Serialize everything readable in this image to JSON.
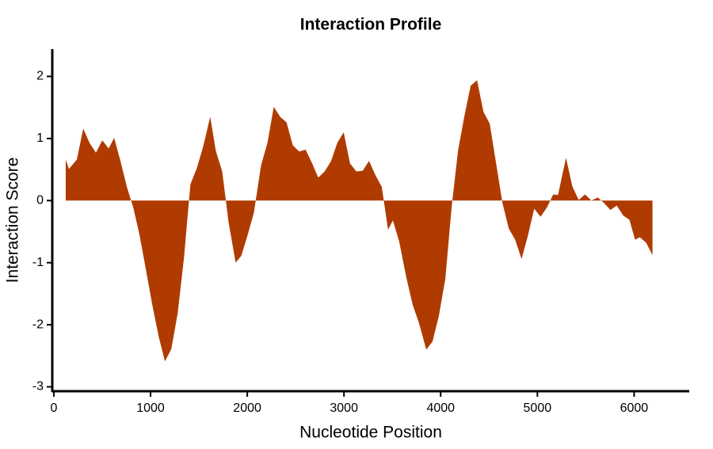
{
  "chart_data": {
    "type": "area",
    "title": "Interaction Profile",
    "x_label": "Nucleotide Position",
    "y_label": "Interaction Score",
    "color": "#b03b00",
    "x": [
      123,
      156,
      238,
      304,
      369,
      435,
      501,
      567,
      624,
      690,
      755,
      821,
      887,
      952,
      1018,
      1084,
      1149,
      1215,
      1281,
      1346,
      1412,
      1478,
      1544,
      1617,
      1675,
      1741,
      1806,
      1880,
      1938,
      2003,
      2069,
      2143,
      2209,
      2274,
      2340,
      2406,
      2471,
      2537,
      2603,
      2668,
      2734,
      2800,
      2865,
      2931,
      2997,
      3062,
      3128,
      3194,
      3259,
      3325,
      3391,
      3456,
      3506,
      3571,
      3645,
      3711,
      3777,
      3851,
      3916,
      3982,
      4048,
      4113,
      4179,
      4245,
      4310,
      4376,
      4442,
      4507,
      4573,
      4639,
      4704,
      4770,
      4836,
      4901,
      4967,
      5033,
      5099,
      5164,
      5213,
      5296,
      5361,
      5427,
      5493,
      5558,
      5624,
      5690,
      5755,
      5821,
      5887,
      5952,
      6010,
      6059,
      6125,
      6190
    ],
    "values": [
      0.66,
      0.51,
      0.66,
      1.16,
      0.93,
      0.77,
      0.97,
      0.84,
      1.01,
      0.63,
      0.22,
      -0.11,
      -0.56,
      -1.11,
      -1.68,
      -2.19,
      -2.59,
      -2.39,
      -1.81,
      -0.92,
      0.26,
      0.52,
      0.87,
      1.35,
      0.8,
      0.47,
      -0.34,
      -1.0,
      -0.89,
      -0.56,
      -0.19,
      0.57,
      0.93,
      1.51,
      1.35,
      1.26,
      0.89,
      0.79,
      0.82,
      0.61,
      0.37,
      0.47,
      0.63,
      0.93,
      1.1,
      0.6,
      0.47,
      0.48,
      0.64,
      0.41,
      0.22,
      -0.47,
      -0.32,
      -0.66,
      -1.24,
      -1.68,
      -1.98,
      -2.4,
      -2.27,
      -1.85,
      -1.26,
      -0.11,
      0.8,
      1.36,
      1.85,
      1.94,
      1.43,
      1.24,
      0.6,
      -0.04,
      -0.45,
      -0.63,
      -0.94,
      -0.57,
      -0.13,
      -0.26,
      -0.11,
      0.1,
      0.09,
      0.69,
      0.23,
      0.01,
      0.1,
      0.0,
      0.05,
      -0.04,
      -0.15,
      -0.08,
      -0.24,
      -0.31,
      -0.63,
      -0.59,
      -0.68,
      -0.88
    ],
    "xlim": [
      -16,
      6570
    ],
    "ylim": [
      -3.07,
      2.44
    ],
    "xticks": [
      0,
      1000,
      2000,
      3000,
      4000,
      5000,
      6000
    ],
    "yticks": [
      -3,
      -2,
      -1,
      0,
      1,
      2
    ]
  }
}
